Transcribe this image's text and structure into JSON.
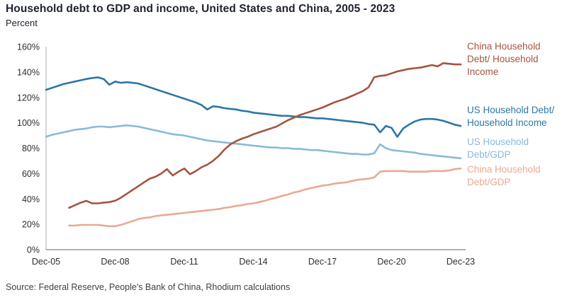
{
  "header": {
    "title": "Household debt to GDP and income, United States and China, 2005 - 2023",
    "subtitle": "Percent"
  },
  "footer": {
    "source": "Source: Federal Reserve, People's Bank of China, Rhodium calculations"
  },
  "legend": {
    "china_income": {
      "label": "China Household\nDebt/ Household\nIncome",
      "color": "#A5543F"
    },
    "us_income": {
      "label": "US Household Debt/\nHousehold Income",
      "color": "#2B77A6"
    },
    "us_gdp": {
      "label": "US Household\nDebt/GDP",
      "color": "#8ABADA"
    },
    "china_gdp": {
      "label": "China Household\nDebt/GDP",
      "color": "#E9A994"
    }
  },
  "chart_data": {
    "type": "line",
    "title": "Household debt to GDP and income, United States and China, 2005 - 2023",
    "ylabel": "Percent",
    "grid": false,
    "legend_position": "right",
    "y_axis": {
      "min": 0,
      "max": 160,
      "step": 20,
      "tick_suffix": "%",
      "tick_labels": [
        "0%",
        "20%",
        "40%",
        "60%",
        "80%",
        "100%",
        "120%",
        "140%",
        "160%"
      ]
    },
    "x_axis": {
      "tick_labels": [
        "Dec-05",
        "Dec-08",
        "Dec-11",
        "Dec-14",
        "Dec-17",
        "Dec-20",
        "Dec-23"
      ],
      "tick_years": [
        2005.92,
        2008.92,
        2011.92,
        2014.92,
        2017.92,
        2020.92,
        2023.92
      ],
      "range_years": [
        2005.92,
        2023.92
      ]
    },
    "frequency": "quarterly",
    "series": [
      {
        "id": "us-debt-gdp",
        "name": "US Household Debt/GDP",
        "color": "#8ABADA",
        "start_year": 2005.92,
        "step_years": 0.25,
        "values": [
          89,
          90.5,
          91.5,
          92.5,
          93.5,
          94.5,
          95,
          95.5,
          96.5,
          97,
          97,
          96.5,
          97,
          97.5,
          98,
          97.5,
          97,
          96,
          95,
          94,
          93,
          92,
          91,
          90.5,
          90,
          89,
          88,
          87,
          86,
          85.5,
          85,
          84.5,
          84,
          83.5,
          83,
          82.5,
          82,
          81.5,
          81,
          80.5,
          80.5,
          80,
          80,
          79.5,
          79.5,
          79,
          78.5,
          78.5,
          78,
          77.5,
          77,
          76.5,
          76,
          75.5,
          75.5,
          75,
          75,
          76,
          83,
          80,
          78.5,
          78,
          77.5,
          77,
          76.5,
          75.5,
          75,
          74.5,
          74,
          73.5,
          73,
          72.5,
          72
        ]
      },
      {
        "id": "china-debt-gdp",
        "name": "China Household Debt/GDP",
        "color": "#E9A994",
        "start_year": 2006.92,
        "step_years": 0.25,
        "values": [
          19,
          19,
          19.5,
          19.5,
          19.5,
          19.5,
          19,
          18.5,
          18.5,
          19.5,
          21,
          22.5,
          24,
          25,
          25.5,
          26.5,
          27,
          27.5,
          28,
          28.5,
          29,
          29.5,
          30,
          30.5,
          31,
          31.5,
          32,
          33,
          33.5,
          34.5,
          35,
          36,
          36.5,
          37.5,
          38.5,
          40,
          41,
          42.5,
          43.5,
          45,
          46,
          47.5,
          48.5,
          49.5,
          50.5,
          51,
          52,
          52.5,
          53,
          54,
          55,
          55.5,
          56,
          57,
          61.5,
          62,
          62,
          62,
          62,
          61.5,
          61.5,
          61.5,
          61.5,
          62,
          62,
          62,
          62.5,
          63.5,
          64
        ]
      },
      {
        "id": "us-debt-income",
        "name": "US Household Debt/ Household Income",
        "color": "#2B77A6",
        "start_year": 2005.92,
        "step_years": 0.25,
        "values": [
          126,
          127.5,
          129,
          130.5,
          131.5,
          132.5,
          133.5,
          134.5,
          135.3,
          135.8,
          134.5,
          130,
          132.5,
          131.5,
          132,
          131.5,
          131,
          129.5,
          128,
          126.5,
          125,
          123.5,
          122,
          120.5,
          119,
          117.5,
          116,
          114,
          110.5,
          113,
          112.5,
          111.5,
          111,
          110.5,
          109.5,
          109,
          108,
          107.5,
          107,
          106.5,
          106,
          105.5,
          105.5,
          105,
          104.5,
          104.5,
          104,
          103.5,
          103.5,
          103,
          102.5,
          102,
          101.5,
          101,
          100.5,
          100,
          99,
          98.5,
          92.5,
          97.5,
          96,
          89,
          95.5,
          98.5,
          101,
          102.5,
          103,
          103,
          102.5,
          101.5,
          100,
          98.5,
          97.5
        ]
      },
      {
        "id": "china-debt-income",
        "name": "China Household Debt/ Household Income",
        "color": "#A5543F",
        "start_year": 2006.92,
        "step_years": 0.25,
        "values": [
          33,
          35,
          37,
          38.5,
          36.5,
          36.5,
          37,
          37.5,
          38.5,
          41,
          44,
          47,
          50,
          53,
          56,
          57.5,
          60,
          63.5,
          58.5,
          61.5,
          64,
          59.5,
          62,
          65,
          67,
          70,
          74,
          79,
          83,
          85.5,
          87.5,
          89,
          91,
          92.5,
          94,
          95.5,
          97,
          99.5,
          102,
          104,
          106,
          107.5,
          109,
          110.5,
          112,
          114,
          116,
          117.5,
          119,
          121,
          123,
          125,
          128,
          136,
          137,
          137.5,
          139,
          140.5,
          141.5,
          142.5,
          143,
          143.5,
          144.5,
          145.5,
          144.5,
          147,
          146.5,
          146,
          146
        ]
      }
    ]
  }
}
